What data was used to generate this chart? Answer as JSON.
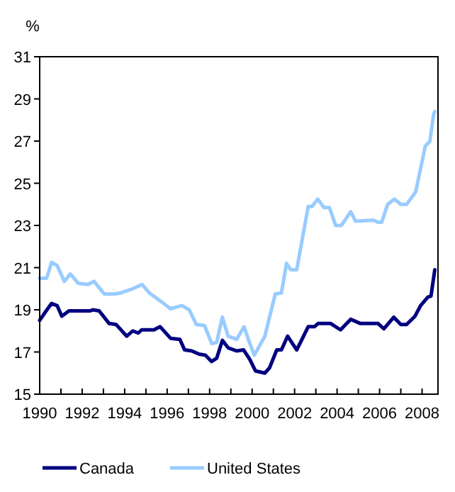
{
  "chart_data": {
    "type": "line",
    "ylabel": "%",
    "xlim": [
      1990,
      2008.75
    ],
    "xticks": [
      1990,
      {
        "value": 1991,
        "label": null
      },
      1992,
      {
        "value": 1993,
        "label": null
      },
      1994,
      {
        "value": 1995,
        "label": null
      },
      1996,
      {
        "value": 1997,
        "label": null
      },
      1998,
      {
        "value": 1999,
        "label": null
      },
      2000,
      {
        "value": 2001,
        "label": null
      },
      2002,
      {
        "value": 2003,
        "label": null
      },
      2004,
      {
        "value": 2005,
        "label": null
      },
      2006,
      {
        "value": 2007,
        "label": null
      },
      2008
    ],
    "ylim": [
      15,
      31
    ],
    "yticks": [
      15,
      17,
      19,
      21,
      23,
      25,
      27,
      29,
      31
    ],
    "grid": false,
    "legend": "bottom",
    "marker": "none",
    "line_style": "solid",
    "series": [
      {
        "name": "Canada",
        "color": "#000080",
        "x": [
          1990,
          1990.27,
          1990.56,
          1990.82,
          1991.04,
          1991.38,
          1992.38,
          1992.5,
          1992.8,
          1993.27,
          1993.6,
          1994.1,
          1994.38,
          1994.64,
          1994.8,
          1995.38,
          1995.67,
          1996.16,
          1996.6,
          1996.82,
          1997.16,
          1997.5,
          1997.8,
          1998.09,
          1998.33,
          1998.6,
          1998.87,
          1999.27,
          1999.6,
          1999.89,
          2000.16,
          2000.6,
          2000.82,
          2001.16,
          2001.38,
          2001.67,
          2002.1,
          2002.64,
          2002.93,
          2003.1,
          2003.7,
          2004.16,
          2004.64,
          2005.1,
          2005.93,
          2006.2,
          2006.67,
          2007,
          2007.27,
          2007.67,
          2007.93,
          2008.27,
          2008.42,
          2008.6
        ],
        "values": [
          18.5,
          18.9,
          19.3,
          19.2,
          18.7,
          18.95,
          18.95,
          19,
          18.95,
          18.35,
          18.3,
          17.75,
          18,
          17.9,
          18.05,
          18.05,
          18.2,
          17.65,
          17.6,
          17.1,
          17.05,
          16.9,
          16.85,
          16.55,
          16.7,
          17.55,
          17.2,
          17.05,
          17.1,
          16.65,
          16.1,
          16,
          16.25,
          17.1,
          17.1,
          17.75,
          17.1,
          18.2,
          18.2,
          18.35,
          18.35,
          18.05,
          18.55,
          18.35,
          18.35,
          18.1,
          18.65,
          18.3,
          18.3,
          18.7,
          19.2,
          19.6,
          19.65,
          20.9
        ]
      },
      {
        "name": "United States",
        "color": "#99ccff",
        "x": [
          1990,
          1990.33,
          1990.56,
          1990.82,
          1991.16,
          1991.44,
          1991.82,
          1992.27,
          1992.56,
          1993.04,
          1993.5,
          1993.82,
          1994.38,
          1994.82,
          1995.16,
          1995.7,
          1996.16,
          1996.7,
          1997.04,
          1997.38,
          1997.76,
          1998.1,
          1998.33,
          1998.6,
          1998.87,
          1999.27,
          1999.62,
          1999.84,
          2000.1,
          2000.38,
          2000.6,
          2001.09,
          2001.38,
          2001.62,
          2001.82,
          2002.1,
          2002.64,
          2002.82,
          2003.09,
          2003.38,
          2003.64,
          2003.93,
          2004.2,
          2004.64,
          2004.87,
          2005.7,
          2005.93,
          2006.1,
          2006.38,
          2006.7,
          2007,
          2007.27,
          2007.6,
          2007.7,
          2007.93,
          2008.15,
          2008.37,
          2008.55,
          2008.6
        ],
        "values": [
          20.5,
          20.5,
          21.25,
          21.1,
          20.35,
          20.7,
          20.25,
          20.2,
          20.35,
          19.75,
          19.75,
          19.8,
          20,
          20.2,
          19.8,
          19.4,
          19.05,
          19.2,
          19,
          18.3,
          18.25,
          17.4,
          17.45,
          18.65,
          17.75,
          17.6,
          18.2,
          17.55,
          16.85,
          17.35,
          17.75,
          19.75,
          19.8,
          21.2,
          20.9,
          20.9,
          23.9,
          23.9,
          24.25,
          23.85,
          23.85,
          23,
          23,
          23.65,
          23.2,
          23.25,
          23.15,
          23.15,
          24,
          24.25,
          24,
          24,
          24.45,
          24.6,
          25.7,
          26.75,
          27,
          28.3,
          28.4
        ]
      }
    ]
  }
}
